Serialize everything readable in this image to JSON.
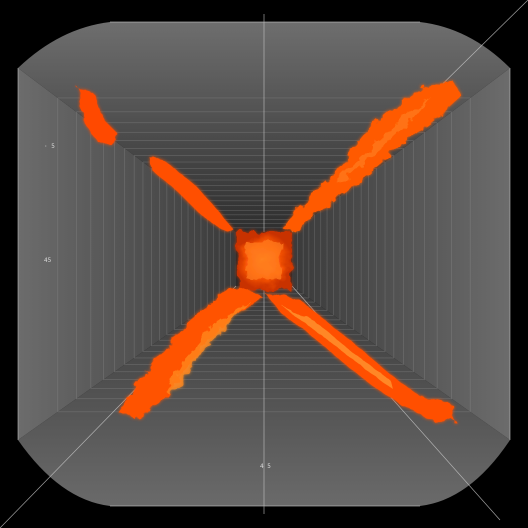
{
  "scene": {
    "labels": {
      "left_upper": "· 5",
      "left_mid": "45",
      "bottom": "4 5"
    },
    "colors": {
      "background": "#000000",
      "panel": "#5a5a5a",
      "panel_dark": "#3d3d3d",
      "grid_line": "#8a8a8a",
      "lava_outer": "#ff4a00",
      "lava_mid": "#ff6a10",
      "lava_hot": "#ffb040"
    },
    "icons": [
      "perspective-box",
      "lava-cross"
    ]
  }
}
